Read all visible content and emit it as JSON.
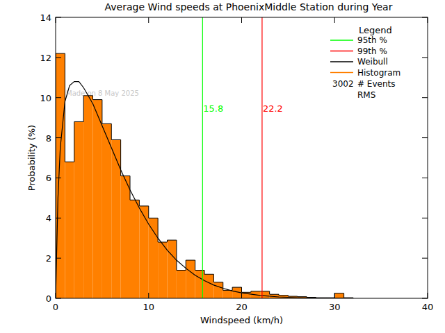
{
  "chart_data": {
    "type": "histogram",
    "title": "Average Wind speeds at PhoenixMiddle Station during Year",
    "x_label": "Windspeed (km/h)",
    "y_label": "Probability (%)",
    "watermark": "Made on 8 May 2025",
    "legend_title": "Legend",
    "legend": "upper right",
    "events": {
      "value": 3002,
      "label": "# Events"
    },
    "rms_label": "RMS",
    "xlim": [
      0,
      40
    ],
    "ylim": [
      0,
      14
    ],
    "xticks": [
      0,
      10,
      20,
      30,
      40
    ],
    "yticks": [
      0,
      2,
      4,
      6,
      8,
      10,
      12,
      14
    ],
    "bins": [
      0,
      1,
      2,
      3,
      4,
      5,
      6,
      7,
      8,
      9,
      10,
      11,
      12,
      13,
      14,
      15,
      16,
      17,
      18,
      19,
      20,
      21,
      22,
      23,
      24,
      25,
      26,
      27,
      28,
      29,
      30,
      31,
      32
    ],
    "series": [
      {
        "name": "Histogram",
        "type": "bar",
        "color": "#ff8000",
        "values": [
          12.2,
          6.8,
          8.8,
          10.1,
          9.9,
          8.7,
          7.9,
          6.1,
          4.9,
          4.6,
          4.0,
          2.8,
          2.9,
          1.4,
          1.9,
          1.4,
          1.2,
          0.8,
          0.4,
          0.55,
          0.3,
          0.35,
          0.35,
          0.2,
          0.15,
          0.1,
          0.08,
          0.05,
          0.03,
          0.03,
          0.25,
          0.03
        ]
      },
      {
        "name": "Weibull",
        "type": "line",
        "color": "#000000",
        "x": [
          0,
          0.25,
          0.5,
          1,
          1.5,
          2,
          2.5,
          3,
          4,
          5,
          6,
          7,
          8,
          9,
          10,
          11,
          12,
          13,
          14,
          15,
          16,
          17,
          18,
          19,
          20,
          22,
          24,
          26,
          28,
          30,
          32
        ],
        "values": [
          0,
          5,
          7.5,
          9.8,
          10.6,
          10.8,
          10.8,
          10.5,
          9.7,
          8.6,
          7.5,
          6.4,
          5.4,
          4.5,
          3.7,
          3.0,
          2.4,
          1.9,
          1.5,
          1.15,
          0.88,
          0.66,
          0.5,
          0.37,
          0.27,
          0.14,
          0.07,
          0.035,
          0.015,
          0.007,
          0.003
        ]
      }
    ],
    "percentiles": [
      {
        "name": "95th %",
        "value": 15.8,
        "color": "#00ff00",
        "label_y": 9.3
      },
      {
        "name": "99th %",
        "value": 22.2,
        "color": "#ff0000",
        "label_y": 9.3
      }
    ]
  }
}
